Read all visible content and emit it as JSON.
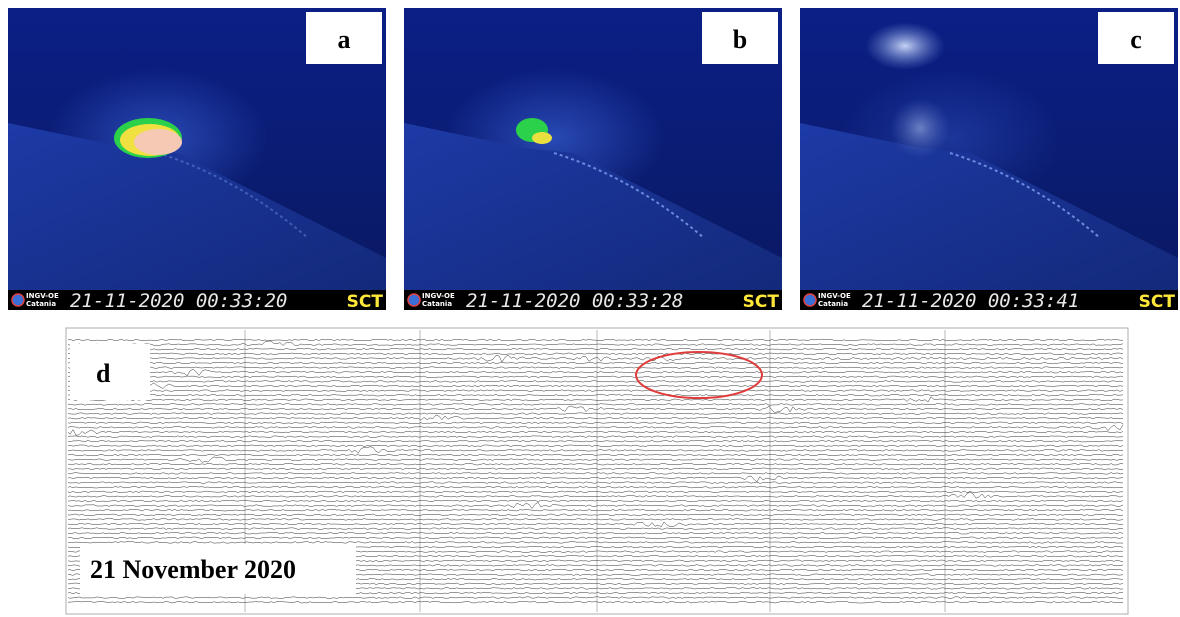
{
  "panels": [
    {
      "label": "a",
      "logo": "INGV-OE",
      "logo_sub": "Catania",
      "timestamp": "21-11-2020 00:33:20",
      "station": "SCT"
    },
    {
      "label": "b",
      "logo": "INGV-OE",
      "logo_sub": "Catania",
      "timestamp": "21-11-2020 00:33:28",
      "station": "SCT"
    },
    {
      "label": "c",
      "logo": "INGV-OE",
      "logo_sub": "Catania",
      "timestamp": "21-11-2020 00:33:41",
      "station": "SCT"
    }
  ],
  "seismogram": {
    "label": "d",
    "date": "21 November 2020"
  }
}
